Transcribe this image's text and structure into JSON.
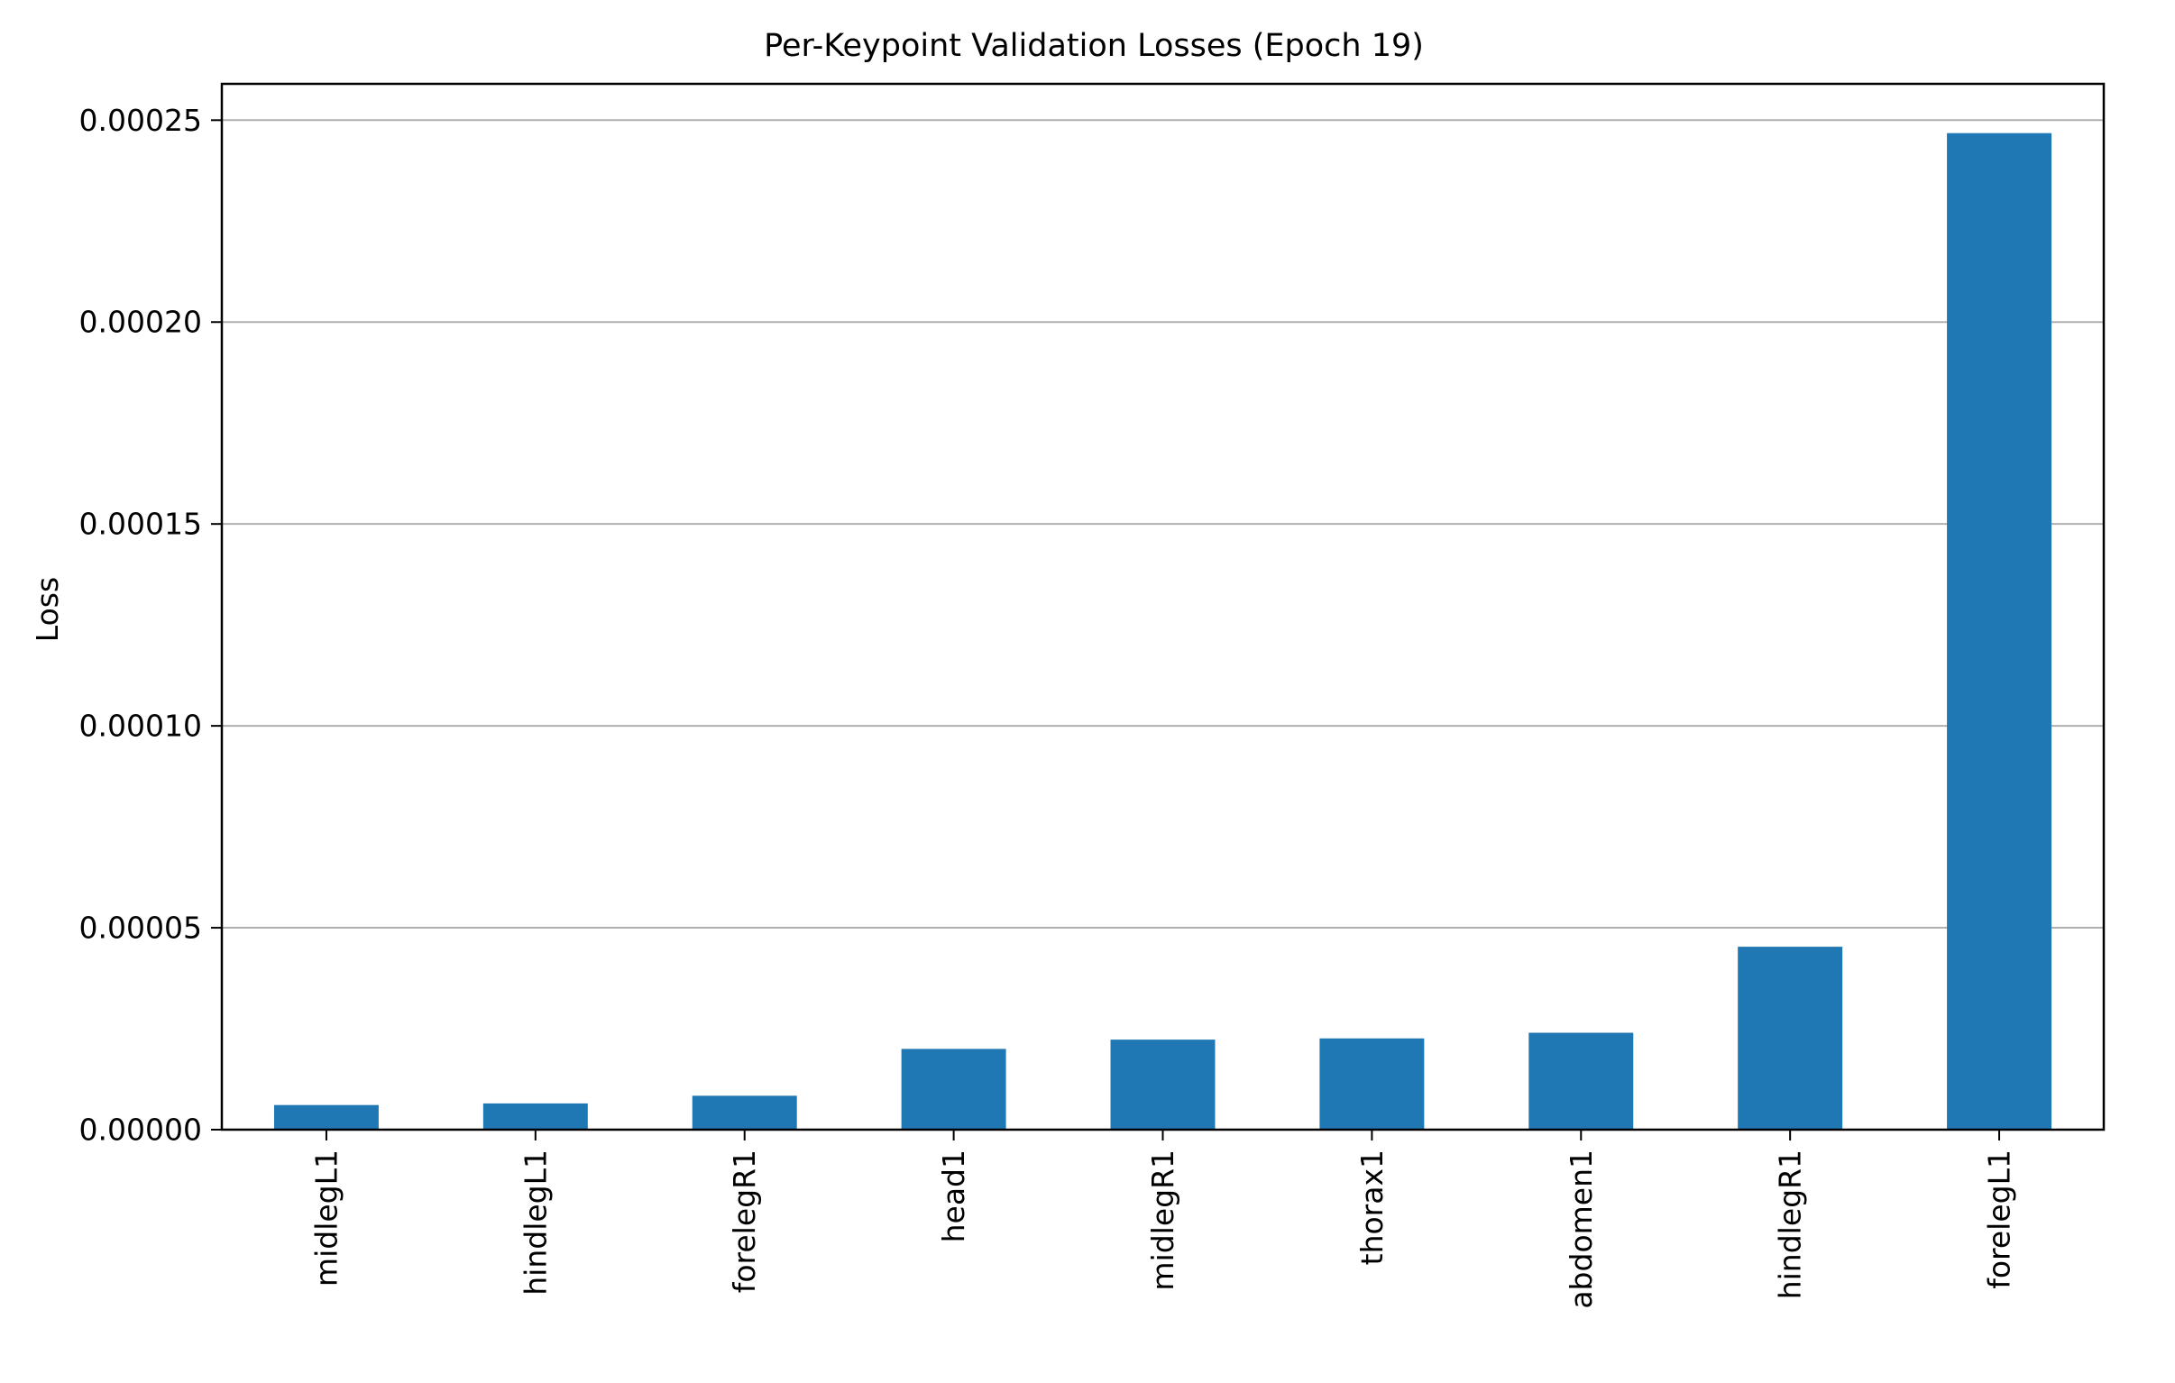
{
  "chart_data": {
    "type": "bar",
    "title": "Per-Keypoint Validation Losses (Epoch 19)",
    "xlabel": "",
    "ylabel": "Loss",
    "categories": [
      "midlegL1",
      "hindlegL1",
      "forelegR1",
      "head1",
      "midlegR1",
      "thorax1",
      "abdomen1",
      "hindlegR1",
      "forelegL1"
    ],
    "values": [
      6.1e-06,
      6.5e-06,
      8.4e-06,
      2e-05,
      2.23e-05,
      2.26e-05,
      2.4e-05,
      4.53e-05,
      0.0002468
    ],
    "ylim": [
      0,
      0.000259
    ],
    "yticks": [
      0,
      5e-05,
      0.0001,
      0.00015,
      0.0002,
      0.00025
    ],
    "ytick_labels": [
      "0.00000",
      "0.00005",
      "0.00010",
      "0.00015",
      "0.00020",
      "0.00025"
    ],
    "grid": "y",
    "bar_color": "#1f77b4",
    "grid_color": "#b0b0b0"
  }
}
